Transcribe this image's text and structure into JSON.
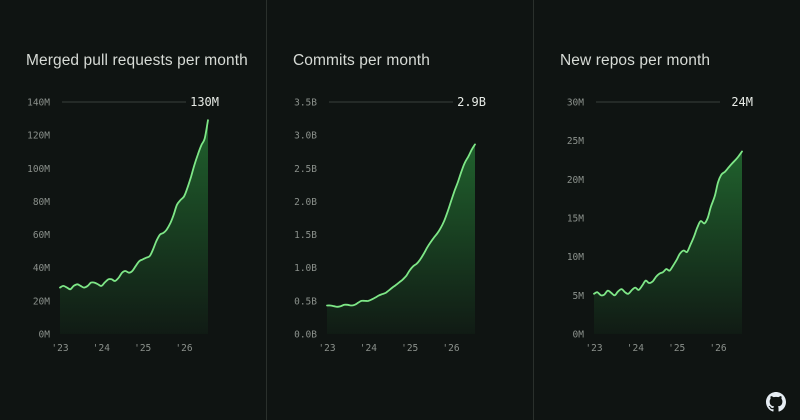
{
  "panels": [
    {
      "title": "Merged pull requests per month",
      "callout": "130M",
      "yticks": [
        "0M",
        "20M",
        "40M",
        "60M",
        "80M",
        "100M",
        "120M",
        "140M"
      ],
      "xticks": [
        "'23",
        "'24",
        "'25",
        "'26"
      ]
    },
    {
      "title": "Commits per month",
      "callout": "2.9B",
      "yticks": [
        "0.0B",
        "0.5B",
        "1.0B",
        "1.5B",
        "2.0B",
        "2.5B",
        "3.0B",
        "3.5B"
      ],
      "xticks": [
        "'23",
        "'24",
        "'25",
        "'26"
      ]
    },
    {
      "title": "New repos per month",
      "callout": "24M",
      "yticks": [
        "0M",
        "5M",
        "10M",
        "15M",
        "20M",
        "25M",
        "30M"
      ],
      "xticks": [
        "'23",
        "'24",
        "'25",
        "'26"
      ]
    }
  ],
  "colors": {
    "background": "#0f1412",
    "line": "#7ee787",
    "fill_top": "#2ea043",
    "axis_text": "#8b918c",
    "divider": "#2a302c"
  },
  "logo_icon": "github-logo-icon",
  "chart_data": [
    {
      "type": "area",
      "title": "Merged pull requests per month",
      "ylabel": "",
      "xlabel": "",
      "x_ticks": [
        "'23",
        "'24",
        "'25",
        "'26"
      ],
      "ylim": [
        0,
        140
      ],
      "unit": "M",
      "x": [
        2023.0,
        2023.08,
        2023.17,
        2023.25,
        2023.33,
        2023.42,
        2023.5,
        2023.58,
        2023.67,
        2023.75,
        2023.83,
        2023.92,
        2024.0,
        2024.08,
        2024.17,
        2024.25,
        2024.33,
        2024.42,
        2024.5,
        2024.58,
        2024.67,
        2024.75,
        2024.83,
        2024.92,
        2025.0,
        2025.08,
        2025.17,
        2025.25,
        2025.33,
        2025.42,
        2025.5,
        2025.58,
        2025.67,
        2025.75,
        2025.83,
        2025.92,
        2026.0,
        2026.08,
        2026.17,
        2026.25,
        2026.33,
        2026.42,
        2026.5,
        2026.58
      ],
      "y": [
        28,
        29,
        28,
        27,
        29,
        30,
        29,
        28,
        29,
        31,
        31,
        30,
        29,
        31,
        33,
        33,
        32,
        34,
        37,
        38,
        37,
        38,
        41,
        44,
        45,
        46,
        47,
        51,
        56,
        60,
        61,
        63,
        67,
        72,
        78,
        81,
        83,
        88,
        95,
        102,
        108,
        114,
        118,
        129
      ],
      "callout": "130M"
    },
    {
      "type": "area",
      "title": "Commits per month",
      "ylabel": "",
      "xlabel": "",
      "x_ticks": [
        "'23",
        "'24",
        "'25",
        "'26"
      ],
      "ylim": [
        0,
        3.5
      ],
      "unit": "B",
      "x": [
        2023.0,
        2023.08,
        2023.17,
        2023.25,
        2023.33,
        2023.42,
        2023.5,
        2023.58,
        2023.67,
        2023.75,
        2023.83,
        2023.92,
        2024.0,
        2024.08,
        2024.17,
        2024.25,
        2024.33,
        2024.42,
        2024.5,
        2024.58,
        2024.67,
        2024.75,
        2024.83,
        2024.92,
        2025.0,
        2025.08,
        2025.17,
        2025.25,
        2025.33,
        2025.42,
        2025.5,
        2025.58,
        2025.67,
        2025.75,
        2025.83,
        2025.92,
        2026.0,
        2026.08,
        2026.17,
        2026.25,
        2026.33,
        2026.42,
        2026.5,
        2026.58
      ],
      "y": [
        0.43,
        0.43,
        0.42,
        0.41,
        0.42,
        0.44,
        0.44,
        0.43,
        0.44,
        0.47,
        0.5,
        0.5,
        0.5,
        0.52,
        0.55,
        0.58,
        0.6,
        0.62,
        0.66,
        0.7,
        0.74,
        0.78,
        0.82,
        0.88,
        0.96,
        1.02,
        1.06,
        1.12,
        1.2,
        1.3,
        1.38,
        1.45,
        1.52,
        1.6,
        1.7,
        1.85,
        2.0,
        2.15,
        2.3,
        2.45,
        2.58,
        2.68,
        2.78,
        2.86
      ],
      "callout": "2.9B"
    },
    {
      "type": "area",
      "title": "New repos per month",
      "ylabel": "",
      "xlabel": "",
      "x_ticks": [
        "'23",
        "'24",
        "'25",
        "'26"
      ],
      "ylim": [
        0,
        30
      ],
      "unit": "M",
      "x": [
        2023.0,
        2023.08,
        2023.17,
        2023.25,
        2023.33,
        2023.42,
        2023.5,
        2023.58,
        2023.67,
        2023.75,
        2023.83,
        2023.92,
        2024.0,
        2024.08,
        2024.17,
        2024.25,
        2024.33,
        2024.42,
        2024.5,
        2024.58,
        2024.67,
        2024.75,
        2024.83,
        2024.92,
        2025.0,
        2025.08,
        2025.17,
        2025.25,
        2025.33,
        2025.42,
        2025.5,
        2025.58,
        2025.67,
        2025.75,
        2025.83,
        2025.92,
        2026.0,
        2026.08,
        2026.17,
        2026.25,
        2026.33,
        2026.42,
        2026.5,
        2026.58
      ],
      "y": [
        5.2,
        5.4,
        5.0,
        5.1,
        5.6,
        5.3,
        5.0,
        5.5,
        5.8,
        5.4,
        5.2,
        5.7,
        6.0,
        5.7,
        6.3,
        6.9,
        6.6,
        6.8,
        7.4,
        7.8,
        8.0,
        8.4,
        8.2,
        8.9,
        9.6,
        10.4,
        10.8,
        10.6,
        11.5,
        12.6,
        13.8,
        14.6,
        14.3,
        15.0,
        16.5,
        17.8,
        19.6,
        20.6,
        21.0,
        21.5,
        22.0,
        22.5,
        23.0,
        23.6
      ],
      "callout": "24M"
    }
  ]
}
